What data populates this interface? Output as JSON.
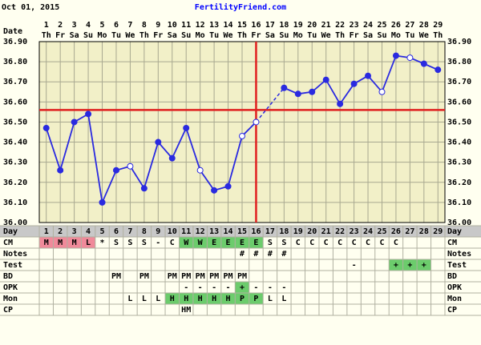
{
  "header": {
    "date": "Oct 01, 2015",
    "site": "FertilityFriend.com"
  },
  "chart_data": {
    "type": "line",
    "row_label": "Date",
    "categories": [
      "1",
      "2",
      "3",
      "4",
      "5",
      "6",
      "7",
      "8",
      "9",
      "10",
      "11",
      "12",
      "13",
      "14",
      "15",
      "16",
      "17",
      "18",
      "19",
      "20",
      "21",
      "22",
      "23",
      "24",
      "25",
      "26",
      "27",
      "28",
      "29"
    ],
    "weekdays": [
      "Th",
      "Fr",
      "Sa",
      "Su",
      "Mo",
      "Tu",
      "We",
      "Th",
      "Fr",
      "Sa",
      "Su",
      "Mo",
      "Tu",
      "We",
      "Th",
      "Fr",
      "Sa",
      "Su",
      "Mo",
      "Tu",
      "We",
      "Th",
      "Fr",
      "Sa",
      "Su",
      "Mo",
      "Tu",
      "We",
      "Th"
    ],
    "values": [
      36.47,
      36.26,
      36.5,
      36.54,
      36.1,
      36.26,
      36.28,
      36.17,
      36.4,
      36.32,
      36.47,
      36.26,
      36.16,
      36.18,
      36.43,
      36.5,
      null,
      36.67,
      36.64,
      36.65,
      36.71,
      36.59,
      36.69,
      36.73,
      36.65,
      36.83,
      36.82,
      36.79,
      36.76
    ],
    "open_points": [
      7,
      12,
      15,
      16,
      25,
      27
    ],
    "color": "#2a2ae0",
    "coverline": 36.56,
    "ovulation_day": 16,
    "marker_line_color": "#e02020",
    "ylim": [
      36.0,
      36.9
    ],
    "yticks": [
      {
        "value": 36.0,
        "label": "36.00"
      },
      {
        "value": 36.1,
        "label": "36.10"
      },
      {
        "value": 36.2,
        "label": "36.20"
      },
      {
        "value": 36.3,
        "label": "36.30"
      },
      {
        "value": 36.4,
        "label": "36.40"
      },
      {
        "value": 36.5,
        "label": "36.50"
      },
      {
        "value": 36.6,
        "label": "36.60"
      },
      {
        "value": 36.7,
        "label": "36.70"
      },
      {
        "value": 36.8,
        "label": "36.80"
      },
      {
        "value": 36.9,
        "label": "36.90"
      }
    ],
    "grid": true
  },
  "table": {
    "day_label": "Day",
    "rows": [
      {
        "label": "CM",
        "cells": [
          "M",
          "M",
          "M",
          "L",
          "*",
          "S",
          "S",
          "S",
          "-",
          "C",
          "W",
          "W",
          "E",
          "E",
          "E",
          "E",
          "S",
          "S",
          "C",
          "C",
          "C",
          "C",
          "C",
          "C",
          "C",
          "C",
          null,
          null,
          null
        ],
        "highlights": [
          {
            "color": "#f08a9a",
            "days": [
              1,
              2,
              3,
              4
            ]
          },
          {
            "color": "#6ccc6c",
            "days": [
              11,
              12,
              13,
              14,
              15,
              16
            ]
          }
        ]
      },
      {
        "label": "Notes",
        "cells": [
          null,
          null,
          null,
          null,
          null,
          null,
          null,
          null,
          null,
          null,
          null,
          null,
          null,
          null,
          "#",
          "#",
          "#",
          "#",
          null,
          null,
          null,
          null,
          null,
          null,
          null,
          null,
          null,
          null,
          null
        ],
        "highlights": []
      },
      {
        "label": "Test",
        "cells": [
          null,
          null,
          null,
          null,
          null,
          null,
          null,
          null,
          null,
          null,
          null,
          null,
          null,
          null,
          null,
          null,
          null,
          null,
          null,
          null,
          null,
          null,
          "-",
          null,
          null,
          "+",
          "+",
          "+",
          null
        ],
        "highlights": [
          {
            "color": "#6ccc6c",
            "days": [
              26,
              27,
              28
            ]
          }
        ]
      },
      {
        "label": "BD",
        "cells": [
          null,
          null,
          null,
          null,
          null,
          "PM",
          null,
          "PM",
          null,
          "PM",
          "PM",
          "PM",
          "PM",
          "PM",
          "PM",
          null,
          null,
          null,
          null,
          null,
          null,
          null,
          null,
          null,
          null,
          null,
          null,
          null,
          null
        ],
        "highlights": []
      },
      {
        "label": "OPK",
        "cells": [
          null,
          null,
          null,
          null,
          null,
          null,
          null,
          null,
          null,
          null,
          "-",
          "-",
          "-",
          "-",
          "+",
          "-",
          "-",
          "-",
          null,
          null,
          null,
          null,
          null,
          null,
          null,
          null,
          null,
          null,
          null
        ],
        "highlights": [
          {
            "color": "#6ccc6c",
            "days": [
              15
            ]
          }
        ]
      },
      {
        "label": "Mon",
        "cells": [
          null,
          null,
          null,
          null,
          null,
          null,
          "L",
          "L",
          "L",
          "H",
          "H",
          "H",
          "H",
          "H",
          "P",
          "P",
          "L",
          "L",
          null,
          null,
          null,
          null,
          null,
          null,
          null,
          null,
          null,
          null,
          null
        ],
        "highlights": [
          {
            "color": "#6ccc6c",
            "days": [
              10,
              11,
              12,
              13,
              14,
              15,
              16
            ]
          }
        ]
      },
      {
        "label": "CP",
        "cells": [
          null,
          null,
          null,
          null,
          null,
          null,
          null,
          null,
          null,
          null,
          "HM",
          null,
          null,
          null,
          null,
          null,
          null,
          null,
          null,
          null,
          null,
          null,
          null,
          null,
          null,
          null,
          null,
          null,
          null
        ],
        "highlights": []
      }
    ]
  }
}
